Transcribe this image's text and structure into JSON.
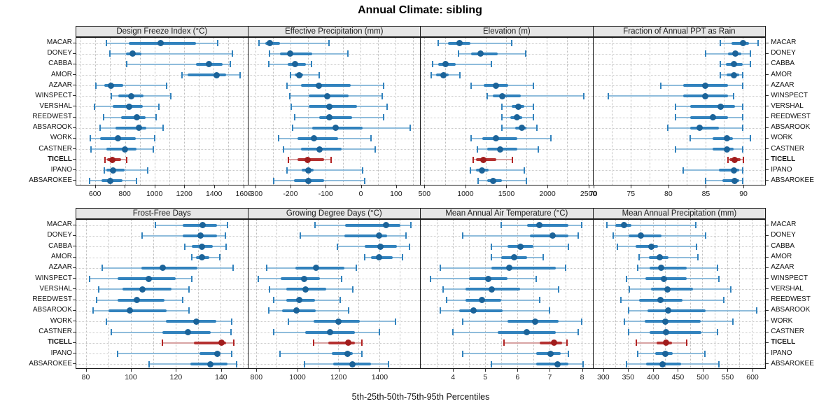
{
  "title": "Annual Climate: sibling",
  "footer_label": "5th-25th-50th-75th-95th Percentiles",
  "highlight_station": "TICELL",
  "colors": {
    "blue_whisker": "#8fbcdb",
    "blue_cap": "#3182bd",
    "blue_bar": "#3182bd",
    "blue_dot": "#1b6399",
    "red_whisker": "#d8a3a3",
    "red_cap": "#b22222",
    "red_bar": "#b43131",
    "red_dot": "#a11c1c",
    "strip_bg": "#e6e6e6"
  },
  "chart_data": {
    "type": "dot-whisker-percentile-trellis",
    "percentiles": [
      5,
      25,
      50,
      75,
      95
    ],
    "stations": [
      "MACAR",
      "DONEY",
      "CABBA",
      "AMOR",
      "AZAAR",
      "WINSPECT",
      "VERSHAL",
      "REEDWEST",
      "ABSAROOK",
      "WORK",
      "CASTNER",
      "TICELL",
      "IPANO",
      "ABSAROKEE"
    ],
    "panels": [
      {
        "title": "Design Freeze Index (°C)",
        "row": 0,
        "col": 0,
        "xlim": [
          470,
          1630
        ],
        "ticks": [
          600,
          800,
          1000,
          1200,
          1400,
          1600
        ],
        "series": {
          "MACAR": [
            675,
            825,
            1040,
            1280,
            1430
          ],
          "DONEY": [
            700,
            805,
            850,
            910,
            1530
          ],
          "CABBA": [
            810,
            1280,
            1370,
            1460,
            1515
          ],
          "AMOR": [
            1185,
            1225,
            1420,
            1485,
            1580
          ],
          "AZAAR": [
            605,
            660,
            705,
            790,
            1080
          ],
          "WINSPECT": [
            705,
            755,
            840,
            925,
            1110
          ],
          "VERSHAL": [
            595,
            715,
            830,
            920,
            1030
          ],
          "REEDWEST": [
            655,
            775,
            880,
            940,
            1010
          ],
          "ABSAROOK": [
            630,
            735,
            895,
            945,
            1060
          ],
          "WORK": [
            565,
            630,
            750,
            875,
            1000
          ],
          "CASTNER": [
            570,
            675,
            800,
            880,
            990
          ],
          "TICELL": [
            665,
            680,
            713,
            775,
            810
          ],
          "IPANO": [
            660,
            675,
            720,
            795,
            955
          ],
          "ABSAROKEE": [
            560,
            640,
            700,
            785,
            880
          ]
        }
      },
      {
        "title": "Effective Precipitation (mm)",
        "row": 0,
        "col": 1,
        "xlim": [
          -320,
          170
        ],
        "ticks": [
          -300,
          -200,
          -100,
          0,
          100
        ],
        "series": {
          "MACAR": [
            -290,
            -272,
            -258,
            -230,
            -90
          ],
          "DONEY": [
            -260,
            -230,
            -200,
            -138,
            -36
          ],
          "CABBA": [
            -262,
            -208,
            -186,
            -155,
            -140
          ],
          "AMOR": [
            -200,
            -188,
            -174,
            -164,
            -118
          ],
          "AZAAR": [
            -210,
            -170,
            -118,
            -28,
            66
          ],
          "WINSPECT": [
            -202,
            -148,
            -94,
            -34,
            62
          ],
          "VERSHAL": [
            -198,
            -148,
            -88,
            -10,
            76
          ],
          "REEDWEST": [
            -188,
            -118,
            -88,
            -24,
            66
          ],
          "ABSAROOK": [
            -194,
            -138,
            -70,
            6,
            142
          ],
          "WORK": [
            -234,
            -180,
            -132,
            -64,
            30
          ],
          "CASTNER": [
            -220,
            -170,
            -116,
            -54,
            42
          ],
          "TICELL": [
            -206,
            -180,
            -150,
            -104,
            -84
          ],
          "IPANO": [
            -210,
            -168,
            -148,
            -134,
            6
          ],
          "ABSAROKEE": [
            -248,
            -190,
            -148,
            -104,
            12
          ]
        }
      },
      {
        "title": "Elevation (m)",
        "row": 0,
        "col": 2,
        "xlim": [
          455,
          2560
        ],
        "ticks": [
          500,
          1000,
          1500,
          2000,
          2500
        ],
        "series": {
          "MACAR": [
            670,
            790,
            930,
            1060,
            1570
          ],
          "DONEY": [
            920,
            1075,
            1190,
            1400,
            1740
          ],
          "CABBA": [
            600,
            670,
            760,
            880,
            1320
          ],
          "AMOR": [
            585,
            645,
            730,
            800,
            930
          ],
          "AZAAR": [
            1075,
            1230,
            1380,
            1530,
            1835
          ],
          "WINSPECT": [
            1265,
            1335,
            1450,
            1680,
            2455
          ],
          "VERSHAL": [
            1450,
            1570,
            1650,
            1720,
            1835
          ],
          "REEDWEST": [
            1450,
            1550,
            1635,
            1700,
            1835
          ],
          "ABSAROOK": [
            1450,
            1610,
            1695,
            1750,
            1880
          ],
          "WORK": [
            1075,
            1205,
            1380,
            1635,
            2050
          ],
          "CASTNER": [
            1145,
            1265,
            1425,
            1635,
            1895
          ],
          "TICELL": [
            1100,
            1135,
            1220,
            1380,
            1575
          ],
          "IPANO": [
            1060,
            1135,
            1205,
            1290,
            1720
          ],
          "ABSAROKEE": [
            1160,
            1265,
            1340,
            1450,
            1750
          ]
        }
      },
      {
        "title": "Fraction of Annual PPT as Rain",
        "row": 0,
        "col": 3,
        "xlim": [
          70,
          93
        ],
        "ticks": [
          70,
          75,
          80,
          85,
          90
        ],
        "series": {
          "MACAR": [
            87,
            88.5,
            90,
            90.8,
            92
          ],
          "DONEY": [
            85,
            88,
            89,
            89.8,
            91
          ],
          "CABBA": [
            87,
            87.7,
            88.8,
            90,
            91
          ],
          "AMOR": [
            87,
            87.8,
            88.8,
            89.5,
            90
          ],
          "AZAAR": [
            79,
            82,
            85,
            88,
            90
          ],
          "WINSPECT": [
            72,
            82,
            85,
            88,
            88.8
          ],
          "VERSHAL": [
            81,
            83,
            87,
            89,
            90
          ],
          "REEDWEST": [
            81,
            83,
            86,
            88,
            90
          ],
          "ABSAROOK": [
            80,
            83,
            84.2,
            86.8,
            90
          ],
          "WORK": [
            83,
            86,
            87.9,
            88.7,
            91
          ],
          "CASTNER": [
            81,
            86,
            87.9,
            88.8,
            90
          ],
          "TICELL": [
            88,
            88.2,
            88.9,
            89.7,
            90.1
          ],
          "IPANO": [
            82,
            86.8,
            88.8,
            89.5,
            90
          ],
          "ABSAROKEE": [
            85,
            87.3,
            88.9,
            89.5,
            90
          ]
        }
      },
      {
        "title": "Frost-Free Days",
        "row": 1,
        "col": 0,
        "xlim": [
          75.5,
          152
        ],
        "ticks": [
          80,
          100,
          120,
          140
        ],
        "series": {
          "MACAR": [
            111,
            123,
            132,
            138.5,
            143
          ],
          "DONEY": [
            105,
            123,
            131,
            138.5,
            142
          ],
          "CABBA": [
            124,
            127,
            131.5,
            136.5,
            142.5
          ],
          "AMOR": [
            127,
            129,
            131.5,
            135,
            139.5
          ],
          "AZAAR": [
            87,
            104.5,
            114,
            129.5,
            145.5
          ],
          "WINSPECT": [
            81.5,
            94,
            108,
            120,
            127
          ],
          "VERSHAL": [
            85.5,
            96,
            105,
            118,
            126
          ],
          "REEDWEST": [
            84.5,
            94,
            102.5,
            115,
            123
          ],
          "ABSAROOK": [
            83,
            90,
            99.5,
            116,
            126
          ],
          "WORK": [
            89,
            115.5,
            129,
            138,
            145
          ],
          "CASTNER": [
            91,
            114,
            125.5,
            135.5,
            144.5
          ],
          "TICELL": [
            114,
            128,
            140.5,
            142.5,
            146
          ],
          "IPANO": [
            94,
            130.5,
            138.5,
            140,
            145
          ],
          "ABSAROKEE": [
            108,
            126.5,
            135.5,
            143,
            147
          ]
        }
      },
      {
        "title": "Growing Degree Days (°C)",
        "row": 1,
        "col": 1,
        "xlim": [
          760,
          1600
        ],
        "ticks": [
          800,
          1000,
          1200,
          1400
        ],
        "series": {
          "MACAR": [
            1085,
            1235,
            1435,
            1505,
            1555
          ],
          "DONEY": [
            1015,
            1230,
            1400,
            1440,
            1530
          ],
          "CABBA": [
            1195,
            1330,
            1405,
            1487,
            1550
          ],
          "AMOR": [
            1330,
            1360,
            1400,
            1465,
            1515
          ],
          "AZAAR": [
            850,
            990,
            1090,
            1230,
            1290
          ],
          "WINSPECT": [
            810,
            920,
            1035,
            1110,
            1215
          ],
          "VERSHAL": [
            865,
            945,
            1040,
            1140,
            1270
          ],
          "REEDWEST": [
            885,
            945,
            1010,
            1085,
            1210
          ],
          "ABSAROOK": [
            860,
            925,
            995,
            1090,
            1250
          ],
          "WORK": [
            955,
            1080,
            1200,
            1305,
            1480
          ],
          "CASTNER": [
            885,
            1040,
            1160,
            1280,
            1400
          ],
          "TICELL": [
            1080,
            1150,
            1250,
            1280,
            1315
          ],
          "IPANO": [
            915,
            1170,
            1245,
            1270,
            1315
          ],
          "ABSAROKEE": [
            1035,
            1175,
            1270,
            1360,
            1445
          ]
        }
      },
      {
        "title": "Mean Annual Air Temperature (°C)",
        "row": 1,
        "col": 2,
        "xlim": [
          3.0,
          8.35
        ],
        "ticks": [
          4,
          5,
          6,
          7,
          8
        ],
        "series": {
          "MACAR": [
            5.5,
            6.3,
            6.7,
            7.6,
            8.0
          ],
          "DONEY": [
            4.3,
            6.4,
            7.1,
            7.6,
            7.9
          ],
          "CABBA": [
            5.2,
            5.7,
            6.1,
            6.5,
            7.6
          ],
          "AMOR": [
            5.2,
            5.5,
            5.9,
            6.3,
            6.8
          ],
          "AZAAR": [
            3.6,
            5.2,
            5.75,
            7.2,
            7.5
          ],
          "WINSPECT": [
            3.3,
            4.5,
            5.1,
            5.7,
            6.6
          ],
          "VERSHAL": [
            3.7,
            4.4,
            5.2,
            6.1,
            7.3
          ],
          "REEDWEST": [
            3.8,
            4.4,
            4.9,
            5.5,
            6.7
          ],
          "ABSAROOK": [
            3.6,
            4.2,
            4.65,
            5.55,
            7.0
          ],
          "WORK": [
            4.3,
            5.7,
            6.55,
            7.3,
            8.0
          ],
          "CASTNER": [
            4.0,
            5.4,
            6.3,
            7.2,
            7.9
          ],
          "TICELL": [
            5.6,
            6.7,
            7.15,
            7.4,
            7.55
          ],
          "IPANO": [
            4.3,
            6.6,
            7.05,
            7.35,
            7.6
          ],
          "ABSAROKEE": [
            5.2,
            6.6,
            7.25,
            7.6,
            8.05
          ]
        }
      },
      {
        "title": "Mean Annual Precipitation (mm)",
        "row": 1,
        "col": 3,
        "xlim": [
          280,
          627
        ],
        "ticks": [
          300,
          350,
          400,
          450,
          500,
          550,
          600
        ],
        "series": {
          "MACAR": [
            307,
            324,
            342,
            357,
            487
          ],
          "DONEY": [
            320,
            351,
            376,
            417,
            507
          ],
          "CABBA": [
            328,
            365,
            397,
            411,
            488
          ],
          "AMOR": [
            373,
            392,
            414,
            432,
            491
          ],
          "AZAAR": [
            369,
            394,
            417,
            469,
            530
          ],
          "WINSPECT": [
            347,
            385,
            422,
            468,
            534
          ],
          "VERSHAL": [
            353,
            397,
            429,
            481,
            558
          ],
          "REEDWEST": [
            336,
            373,
            415,
            460,
            544
          ],
          "ABSAROOK": [
            351,
            389,
            431,
            507,
            610
          ],
          "WORK": [
            343,
            383,
            425,
            497,
            562
          ],
          "CASTNER": [
            351,
            393,
            427,
            498,
            531
          ],
          "TICELL": [
            367,
            407,
            427,
            439,
            468
          ],
          "IPANO": [
            370,
            405,
            425,
            440,
            505
          ],
          "ABSAROKEE": [
            347,
            387,
            419,
            457,
            534
          ]
        }
      }
    ]
  }
}
